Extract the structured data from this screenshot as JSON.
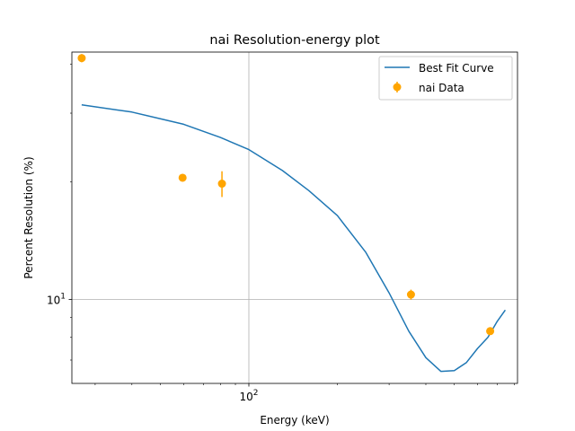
{
  "chart_data": {
    "type": "scatter",
    "title": "nai Resolution-energy plot",
    "xlabel": "Energy (keV)",
    "ylabel": "Percent Resolution (%)",
    "xscale": "log",
    "yscale": "log",
    "xlim": [
      25.0,
      820.0
    ],
    "ylim": [
      6.1,
      43.0
    ],
    "grid": true,
    "legend_position": "top-right",
    "x_major_ticks": [
      {
        "value": 100,
        "label": "10^2"
      }
    ],
    "y_major_ticks": [
      {
        "value": 10,
        "label": "10^1"
      }
    ],
    "series": [
      {
        "name": "Best Fit Curve",
        "kind": "line",
        "color": "#1f77b4",
        "x": [
          27,
          40,
          60,
          80,
          100,
          130,
          160,
          200,
          250,
          300,
          350,
          400,
          450,
          500,
          550,
          600,
          650,
          700,
          745
        ],
        "y": [
          31.5,
          30.2,
          28.1,
          26.0,
          24.2,
          21.4,
          19.0,
          16.4,
          13.2,
          10.4,
          8.3,
          7.1,
          6.55,
          6.58,
          6.9,
          7.5,
          8.0,
          8.8,
          9.4
        ]
      },
      {
        "name": "nai Data",
        "kind": "errorbar",
        "color": "#ffa500",
        "x": [
          27,
          59.5,
          81,
          356,
          662
        ],
        "y": [
          41.5,
          20.5,
          19.8,
          10.3,
          8.3
        ],
        "yerr": [
          1.0,
          0.4,
          1.5,
          0.3,
          0.15
        ]
      }
    ]
  }
}
